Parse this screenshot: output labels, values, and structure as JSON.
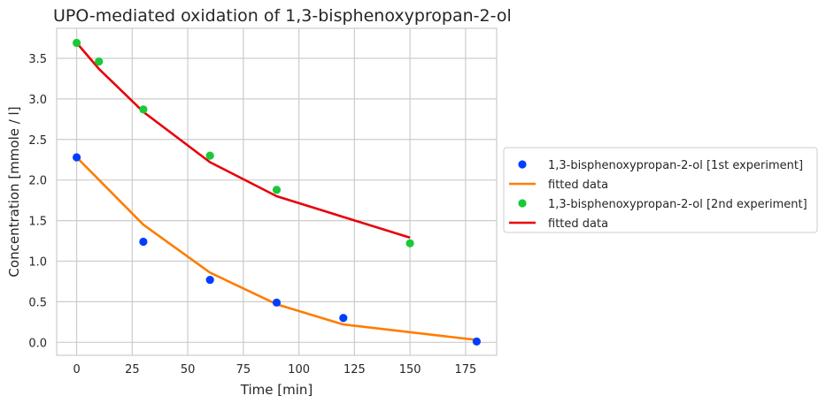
{
  "chart_data": {
    "type": "scatter",
    "title": "UPO-mediated oxidation of 1,3-bisphenoxypropan-2-ol",
    "xlabel": "Time [min]",
    "ylabel": "Concentration [mmole / l]",
    "xlim": [
      -9,
      189
    ],
    "ylim": [
      -0.16,
      3.87
    ],
    "xticks": [
      0,
      25,
      50,
      75,
      100,
      125,
      150,
      175
    ],
    "xtick_labels": [
      "0",
      "25",
      "50",
      "75",
      "100",
      "125",
      "150",
      "175"
    ],
    "yticks": [
      0.0,
      0.5,
      1.0,
      1.5,
      2.0,
      2.5,
      3.0,
      3.5
    ],
    "ytick_labels": [
      "0.0",
      "0.5",
      "1.0",
      "1.5",
      "2.0",
      "2.5",
      "3.0",
      "3.5"
    ],
    "grid": true,
    "legend_position": "outside-right",
    "series": [
      {
        "name": "1,3-bisphenoxypropan-2-ol [1st experiment]",
        "kind": "scatter",
        "color": "#023eff",
        "x": [
          0,
          30,
          60,
          90,
          120,
          180
        ],
        "y": [
          2.28,
          1.24,
          0.77,
          0.49,
          0.3,
          0.01
        ]
      },
      {
        "name": "fitted data",
        "kind": "line",
        "color": "#ff7c00",
        "x": [
          0,
          30,
          60,
          90,
          120,
          180
        ],
        "y": [
          2.28,
          1.45,
          0.86,
          0.47,
          0.22,
          0.03
        ]
      },
      {
        "name": "1,3-bisphenoxypropan-2-ol [2nd experiment]",
        "kind": "scatter",
        "color": "#1ac938",
        "x": [
          0,
          10,
          30,
          60,
          90,
          150
        ],
        "y": [
          3.69,
          3.46,
          2.87,
          2.3,
          1.88,
          1.22
        ]
      },
      {
        "name": "fitted data",
        "kind": "line",
        "color": "#e8000b",
        "x": [
          0,
          10,
          30,
          60,
          90,
          150
        ],
        "y": [
          3.69,
          3.37,
          2.84,
          2.22,
          1.8,
          1.29
        ]
      }
    ]
  }
}
